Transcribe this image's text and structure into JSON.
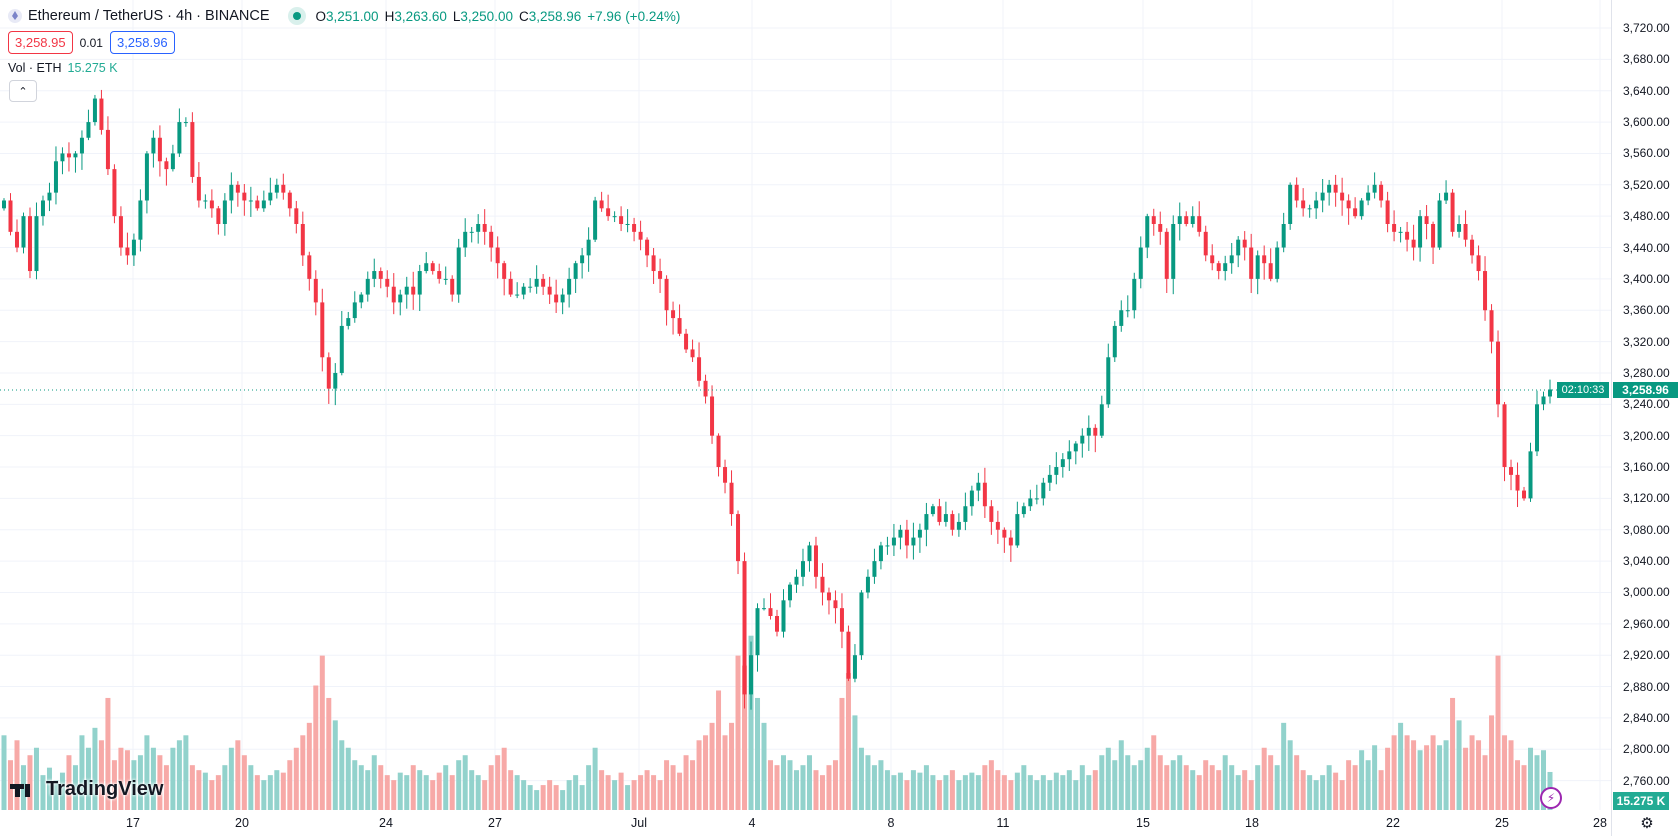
{
  "header": {
    "symbol": "Ethereum / TetherUS · 4h · BINANCE",
    "ohlc": [
      {
        "key": "O",
        "value": "3,251.00"
      },
      {
        "key": "H",
        "value": "3,263.60"
      },
      {
        "key": "L",
        "value": "3,250.00"
      },
      {
        "key": "C",
        "value": "3,258.96"
      }
    ],
    "change": "+7.96 (+0.24%)"
  },
  "trade": {
    "sell": "3,258.95",
    "spread": "0.01",
    "buy": "3,258.96"
  },
  "volume_legend": {
    "label": "Vol · ETH",
    "value": "15.275 K"
  },
  "collapse_icon": "chevron-up",
  "price_axis": {
    "labels": [
      "3,720.00",
      "3,680.00",
      "3,640.00",
      "3,600.00",
      "3,560.00",
      "3,520.00",
      "3,480.00",
      "3,440.00",
      "3,400.00",
      "3,360.00",
      "3,320.00",
      "3,280.00",
      "3,240.00",
      "3,200.00",
      "3,160.00",
      "3,120.00",
      "3,080.00",
      "3,040.00",
      "3,000.00",
      "2,960.00",
      "2,920.00",
      "2,880.00",
      "2,840.00",
      "2,800.00",
      "2,760.00"
    ],
    "last_price": "3,258.96",
    "countdown": "02:10:33",
    "last_volume": "15.275 K"
  },
  "time_axis": {
    "labels": [
      "17",
      "20",
      "24",
      "27",
      "Jul",
      "4",
      "8",
      "11",
      "15",
      "18",
      "22",
      "25",
      "28"
    ]
  },
  "logo": "TradingView",
  "colors": {
    "up": "#089981",
    "down": "#f23645",
    "vol_up": "#92d2cc",
    "vol_down": "#f7a9a7",
    "grid": "#f0f3fa",
    "accent": "#2962ff"
  },
  "chart_data": {
    "type": "candlestick",
    "interval": "4h",
    "ylim": [
      2760,
      3720
    ],
    "first_open": 3490,
    "closes": [
      3500,
      3460,
      3440,
      3480,
      3410,
      3480,
      3500,
      3510,
      3550,
      3560,
      3555,
      3560,
      3580,
      3600,
      3630,
      3590,
      3540,
      3480,
      3440,
      3430,
      3450,
      3500,
      3560,
      3580,
      3550,
      3540,
      3560,
      3600,
      3600,
      3530,
      3500,
      3500,
      3490,
      3470,
      3500,
      3520,
      3510,
      3500,
      3500,
      3490,
      3500,
      3510,
      3520,
      3510,
      3490,
      3470,
      3430,
      3400,
      3370,
      3300,
      3260,
      3280,
      3340,
      3350,
      3370,
      3380,
      3400,
      3410,
      3400,
      3390,
      3370,
      3380,
      3390,
      3380,
      3410,
      3420,
      3410,
      3400,
      3400,
      3380,
      3440,
      3460,
      3460,
      3470,
      3460,
      3440,
      3420,
      3400,
      3380,
      3380,
      3390,
      3390,
      3400,
      3390,
      3380,
      3370,
      3380,
      3400,
      3420,
      3430,
      3450,
      3500,
      3490,
      3480,
      3480,
      3470,
      3470,
      3460,
      3450,
      3430,
      3410,
      3400,
      3360,
      3350,
      3330,
      3310,
      3300,
      3270,
      3250,
      3200,
      3160,
      3140,
      3100,
      3040,
      2870,
      2920,
      2980,
      2980,
      2970,
      2950,
      2990,
      3010,
      3020,
      3040,
      3060,
      3020,
      3000,
      2990,
      2980,
      2950,
      2890,
      2920,
      3000,
      3020,
      3040,
      3060,
      3060,
      3070,
      3080,
      3060,
      3070,
      3080,
      3100,
      3110,
      3090,
      3100,
      3080,
      3090,
      3110,
      3130,
      3140,
      3110,
      3090,
      3080,
      3070,
      3060,
      3100,
      3110,
      3120,
      3120,
      3140,
      3150,
      3160,
      3170,
      3180,
      3190,
      3200,
      3210,
      3200,
      3240,
      3300,
      3340,
      3360,
      3360,
      3400,
      3440,
      3480,
      3470,
      3460,
      3400,
      3470,
      3480,
      3470,
      3480,
      3460,
      3430,
      3420,
      3410,
      3420,
      3430,
      3450,
      3440,
      3400,
      3430,
      3420,
      3400,
      3440,
      3470,
      3520,
      3500,
      3490,
      3490,
      3500,
      3510,
      3520,
      3510,
      3500,
      3490,
      3480,
      3500,
      3510,
      3520,
      3500,
      3470,
      3460,
      3460,
      3450,
      3440,
      3480,
      3470,
      3440,
      3500,
      3510,
      3460,
      3470,
      3450,
      3430,
      3410,
      3360,
      3320,
      3240,
      3160,
      3150,
      3130,
      3120,
      3180,
      3240,
      3250,
      3258.96
    ],
    "volumes_k": [
      30,
      20,
      28,
      18,
      22,
      25,
      14,
      17,
      12,
      15,
      22,
      18,
      30,
      25,
      33,
      28,
      45,
      20,
      25,
      24,
      20,
      22,
      30,
      25,
      22,
      18,
      25,
      28,
      30,
      18,
      16,
      15,
      12,
      14,
      18,
      25,
      28,
      22,
      18,
      14,
      12,
      14,
      16,
      15,
      20,
      25,
      30,
      35,
      50,
      62,
      45,
      36,
      28,
      25,
      20,
      18,
      16,
      22,
      18,
      14,
      12,
      15,
      14,
      18,
      16,
      14,
      12,
      15,
      18,
      14,
      20,
      22,
      16,
      14,
      12,
      18,
      22,
      25,
      16,
      14,
      12,
      10,
      8,
      10,
      12,
      10,
      8,
      12,
      14,
      10,
      18,
      25,
      16,
      14,
      12,
      15,
      10,
      12,
      14,
      16,
      14,
      12,
      20,
      18,
      15,
      22,
      20,
      28,
      30,
      35,
      48,
      30,
      35,
      62,
      58,
      70,
      45,
      35,
      20,
      18,
      22,
      20,
      16,
      18,
      22,
      16,
      14,
      18,
      20,
      45,
      55,
      38,
      25,
      22,
      18,
      20,
      16,
      14,
      15,
      12,
      16,
      15,
      18,
      14,
      12,
      14,
      16,
      12,
      14,
      15,
      14,
      18,
      20,
      16,
      14,
      12,
      15,
      18,
      14,
      12,
      14,
      12,
      15,
      14,
      16,
      12,
      18,
      14,
      16,
      22,
      25,
      20,
      28,
      22,
      18,
      20,
      25,
      30,
      22,
      18,
      20,
      22,
      18,
      16,
      14,
      20,
      18,
      16,
      22,
      18,
      14,
      16,
      12,
      18,
      25,
      22,
      18,
      35,
      28,
      22,
      16,
      14,
      12,
      14,
      18,
      15,
      12,
      20,
      18,
      24,
      20,
      26,
      16,
      25,
      30,
      35,
      30,
      28,
      24,
      26,
      30,
      26,
      28,
      45,
      36,
      25,
      30,
      28,
      22,
      38,
      62,
      30,
      28,
      20,
      18,
      25,
      22,
      24,
      15.275
    ]
  }
}
